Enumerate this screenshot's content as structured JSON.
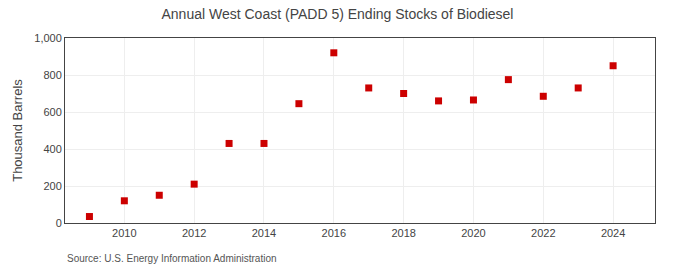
{
  "chart_data": {
    "type": "scatter",
    "title": "Annual West Coast (PADD 5) Ending Stocks of Biodiesel",
    "ylabel": "Thousand Barrels",
    "source": "Source: U.S. Energy Information Administration",
    "x": [
      2009,
      2010,
      2011,
      2012,
      2013,
      2014,
      2015,
      2016,
      2017,
      2018,
      2019,
      2020,
      2021,
      2022,
      2023,
      2024
    ],
    "values": [
      35,
      120,
      150,
      210,
      430,
      430,
      645,
      920,
      730,
      700,
      660,
      665,
      775,
      685,
      730,
      850
    ],
    "color": "#cc0000",
    "marker": "square",
    "xlim": [
      2008.3,
      2025.2
    ],
    "xticks": [
      2010,
      2012,
      2014,
      2016,
      2018,
      2020,
      2022,
      2024
    ],
    "ylim": [
      0,
      1000
    ],
    "yticks": [
      0,
      200,
      400,
      600,
      800,
      {
        "value": 1000,
        "label": "1,000"
      }
    ],
    "grid": true
  }
}
